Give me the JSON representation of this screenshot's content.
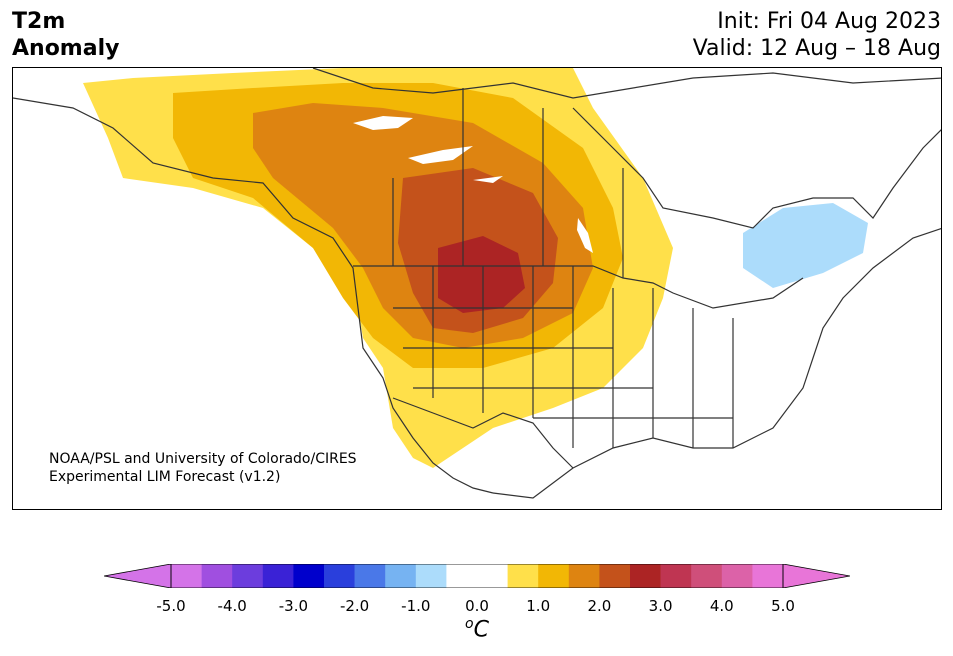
{
  "header": {
    "title_line1": "T2m",
    "title_line2": "Anomaly",
    "init": "Init: Fri 04 Aug 2023",
    "valid": "Valid: 12 Aug – 18 Aug"
  },
  "credit": {
    "line1": "NOAA/PSL and University of Colorado/CIRES",
    "line2": "Experimental LIM Forecast (v1.2)"
  },
  "colorbar": {
    "unit_base": "C",
    "unit_sup": "o",
    "ticks": [
      "-5.0",
      "-4.0",
      "-3.0",
      "-2.0",
      "-1.0",
      "0.0",
      "1.0",
      "2.0",
      "3.0",
      "4.0",
      "5.0"
    ],
    "colors": [
      "#d473e8",
      "#a04fe0",
      "#6c3ddd",
      "#3a22d6",
      "#0000cc",
      "#2a3fdc",
      "#4a78e8",
      "#76b3f2",
      "#acdcfb",
      "#ffffff",
      "#ffffff",
      "#ffe04a",
      "#f2b705",
      "#de8411",
      "#c4521b",
      "#ac2424",
      "#bf3552",
      "#cf4f7a",
      "#dc62a8",
      "#e875d8"
    ],
    "under_color": "#d473e8",
    "over_color": "#e875d8"
  }
}
